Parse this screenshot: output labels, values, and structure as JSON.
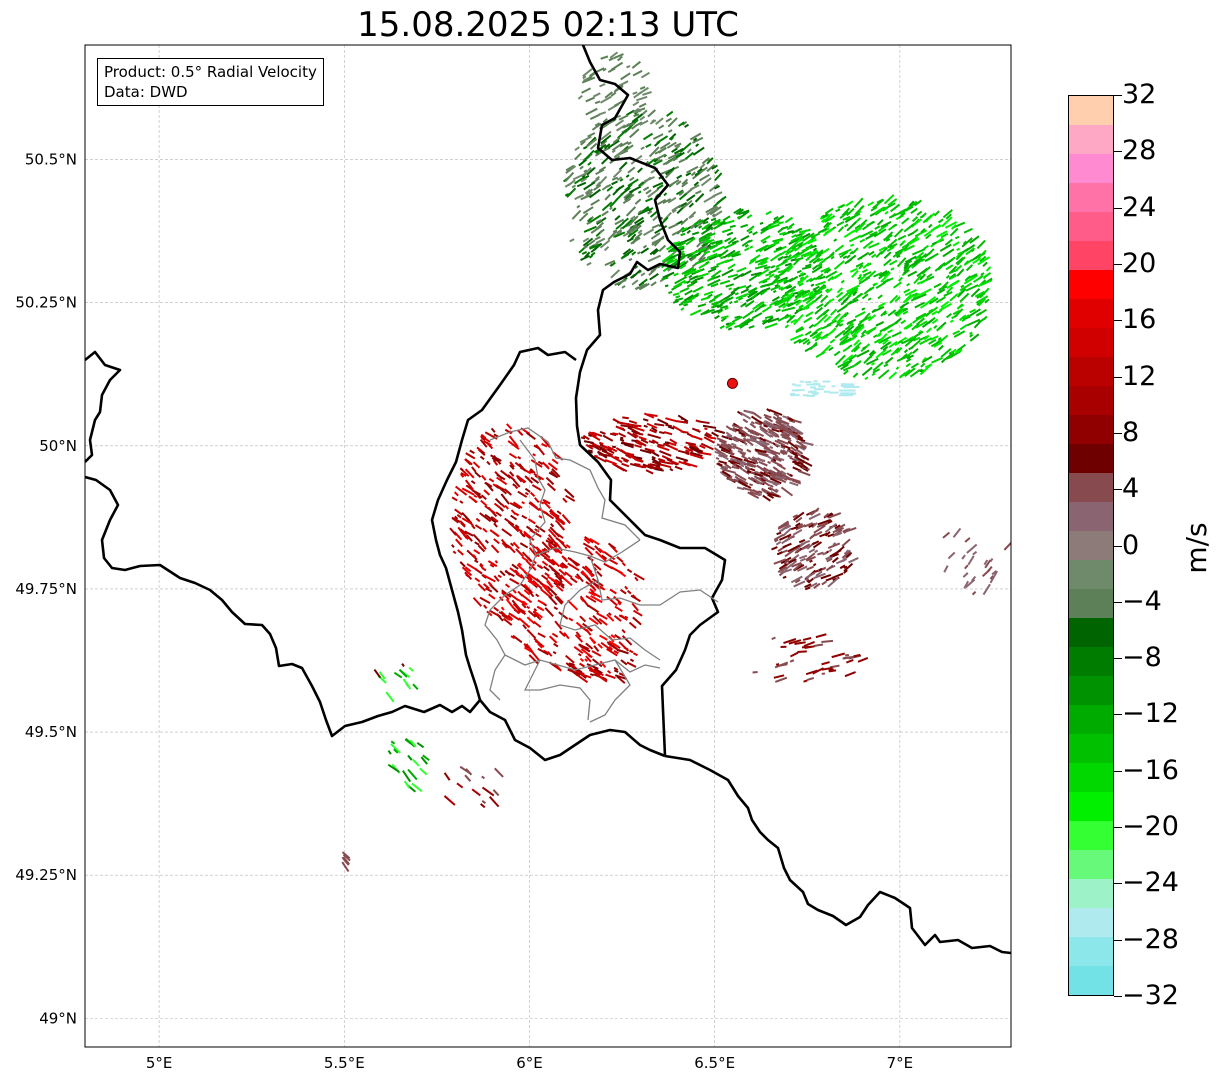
{
  "title": "15.08.2025 02:13 UTC",
  "info": {
    "product": "Product: 0.5° Radial Velocity",
    "data": "Data: DWD"
  },
  "map": {
    "lon_range": [
      4.8,
      7.3
    ],
    "lat_range": [
      48.95,
      50.7
    ],
    "lon_ticks": [
      {
        "value": 5.0,
        "label": "5°E"
      },
      {
        "value": 5.5,
        "label": "5.5°E"
      },
      {
        "value": 6.0,
        "label": "6°E"
      },
      {
        "value": 6.5,
        "label": "6.5°E"
      },
      {
        "value": 7.0,
        "label": "7°E"
      }
    ],
    "lat_ticks": [
      {
        "value": 49.0,
        "label": "49°N"
      },
      {
        "value": 49.25,
        "label": "49.25°N"
      },
      {
        "value": 49.5,
        "label": "49.5°N"
      },
      {
        "value": 49.75,
        "label": "49.75°N"
      },
      {
        "value": 50.0,
        "label": "50°N"
      },
      {
        "value": 50.25,
        "label": "50.25°N"
      },
      {
        "value": 50.5,
        "label": "50.5°N"
      }
    ],
    "gridlines": true,
    "radar_site": {
      "lon": 6.548,
      "lat": 50.109,
      "color": "#ee1111"
    }
  },
  "colorbar": {
    "unit": "m/s",
    "min": -32,
    "max": 32,
    "tick_labels": [
      "32",
      "28",
      "24",
      "20",
      "16",
      "12",
      "8",
      "4",
      "0",
      "−4",
      "−8",
      "−12",
      "−16",
      "−20",
      "−24",
      "−28",
      "−32"
    ],
    "colors_top_to_bottom": [
      "#ffcfae",
      "#ffa8c5",
      "#ff8ad2",
      "#ff72a8",
      "#ff5c8a",
      "#ff4466",
      "#ff0000",
      "#e00000",
      "#d00000",
      "#bb0000",
      "#a80000",
      "#900000",
      "#6e0000",
      "#874a4f",
      "#8a6470",
      "#8c7b78",
      "#6f8a6a",
      "#5d8058",
      "#006400",
      "#007c00",
      "#009200",
      "#00ab00",
      "#00c000",
      "#00d800",
      "#00f000",
      "#33ff33",
      "#66f97a",
      "#9ef2c8",
      "#aeeaee",
      "#8ce7eb",
      "#72e2e6"
    ]
  }
}
